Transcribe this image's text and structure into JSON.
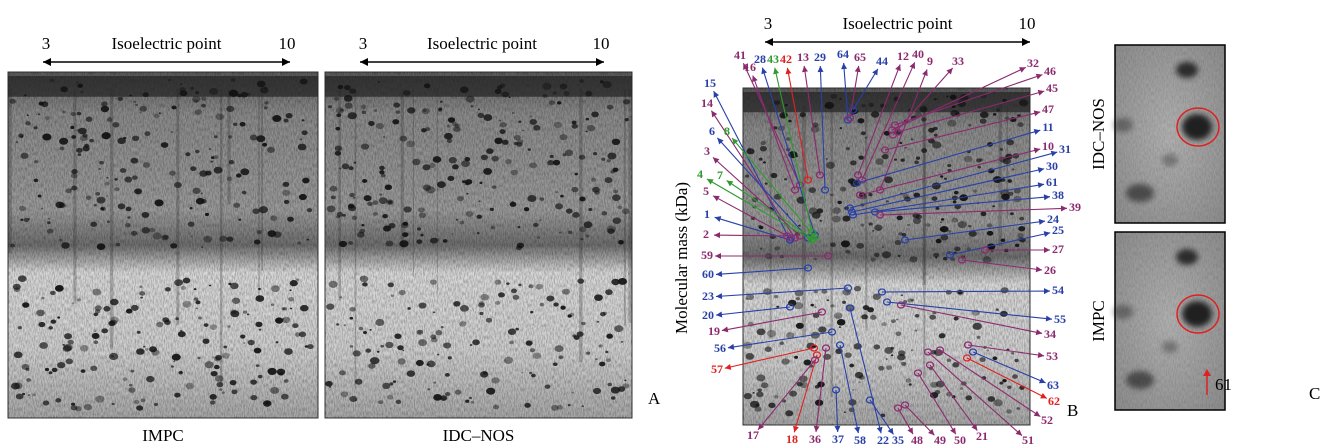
{
  "panel_a": {
    "letter": "A",
    "gels": [
      {
        "caption": "IMPC",
        "axis": {
          "start": "3",
          "label": "Isoelectric point",
          "end": "10"
        }
      },
      {
        "caption": "IDC–NOS",
        "axis": {
          "start": "3",
          "label": "Isoelectric point",
          "end": "10"
        }
      }
    ]
  },
  "panel_b": {
    "letter": "B",
    "axis": {
      "start": "3",
      "label": "Isoelectric point",
      "end": "10"
    },
    "y_label": "Molecular mass (kDa)",
    "spots": [
      {
        "label": "41",
        "color": "#8b2a6e"
      },
      {
        "label": "16",
        "color": "#8b2a6e"
      },
      {
        "label": "28",
        "color": "#2840a8"
      },
      {
        "label": "43",
        "color": "#2f9a2f"
      },
      {
        "label": "42",
        "color": "#e02020"
      },
      {
        "label": "13",
        "color": "#8b2a6e"
      },
      {
        "label": "29",
        "color": "#2840a8"
      },
      {
        "label": "64",
        "color": "#2840a8"
      },
      {
        "label": "65",
        "color": "#8b2a6e"
      },
      {
        "label": "44",
        "color": "#2840a8"
      },
      {
        "label": "12",
        "color": "#8b2a6e"
      },
      {
        "label": "40",
        "color": "#8b2a6e"
      },
      {
        "label": "9",
        "color": "#8b2a6e"
      },
      {
        "label": "33",
        "color": "#8b2a6e"
      },
      {
        "label": "32",
        "color": "#8b2a6e"
      },
      {
        "label": "46",
        "color": "#8b2a6e"
      },
      {
        "label": "45",
        "color": "#8b2a6e"
      },
      {
        "label": "47",
        "color": "#8b2a6e"
      },
      {
        "label": "11",
        "color": "#2840a8"
      },
      {
        "label": "10",
        "color": "#8b2a6e"
      },
      {
        "label": "31",
        "color": "#2840a8"
      },
      {
        "label": "30",
        "color": "#2840a8"
      },
      {
        "label": "61",
        "color": "#2840a8"
      },
      {
        "label": "38",
        "color": "#2840a8"
      },
      {
        "label": "39",
        "color": "#8b2a6e"
      },
      {
        "label": "24",
        "color": "#2840a8"
      },
      {
        "label": "25",
        "color": "#2840a8"
      },
      {
        "label": "27",
        "color": "#8b2a6e"
      },
      {
        "label": "26",
        "color": "#8b2a6e"
      },
      {
        "label": "54",
        "color": "#2840a8"
      },
      {
        "label": "55",
        "color": "#2840a8"
      },
      {
        "label": "34",
        "color": "#8b2a6e"
      },
      {
        "label": "53",
        "color": "#8b2a6e"
      },
      {
        "label": "63",
        "color": "#2840a8"
      },
      {
        "label": "62",
        "color": "#e02020"
      },
      {
        "label": "52",
        "color": "#8b2a6e"
      },
      {
        "label": "51",
        "color": "#8b2a6e"
      },
      {
        "label": "21",
        "color": "#8b2a6e"
      },
      {
        "label": "50",
        "color": "#8b2a6e"
      },
      {
        "label": "49",
        "color": "#8b2a6e"
      },
      {
        "label": "48",
        "color": "#8b2a6e"
      },
      {
        "label": "35",
        "color": "#2840a8"
      },
      {
        "label": "22",
        "color": "#2840a8"
      },
      {
        "label": "58",
        "color": "#2840a8"
      },
      {
        "label": "37",
        "color": "#2840a8"
      },
      {
        "label": "36",
        "color": "#8b2a6e"
      },
      {
        "label": "18",
        "color": "#e02020"
      },
      {
        "label": "17",
        "color": "#8b2a6e"
      },
      {
        "label": "15",
        "color": "#2840a8"
      },
      {
        "label": "14",
        "color": "#8b2a6e"
      },
      {
        "label": "6",
        "color": "#2840a8"
      },
      {
        "label": "8",
        "color": "#2f9a2f"
      },
      {
        "label": "3",
        "color": "#8b2a6e"
      },
      {
        "label": "4",
        "color": "#2f9a2f"
      },
      {
        "label": "7",
        "color": "#2f9a2f"
      },
      {
        "label": "5",
        "color": "#8b2a6e"
      },
      {
        "label": "1",
        "color": "#2840a8"
      },
      {
        "label": "2",
        "color": "#8b2a6e"
      },
      {
        "label": "59",
        "color": "#8b2a6e"
      },
      {
        "label": "60",
        "color": "#2840a8"
      },
      {
        "label": "23",
        "color": "#2840a8"
      },
      {
        "label": "20",
        "color": "#2840a8"
      },
      {
        "label": "19",
        "color": "#8b2a6e"
      },
      {
        "label": "56",
        "color": "#2840a8"
      },
      {
        "label": "57",
        "color": "#e02020"
      }
    ]
  },
  "panel_c": {
    "letter": "C",
    "insets": [
      {
        "label": "IDC–NOS"
      },
      {
        "label": "IMPC",
        "marker": "61"
      }
    ]
  }
}
